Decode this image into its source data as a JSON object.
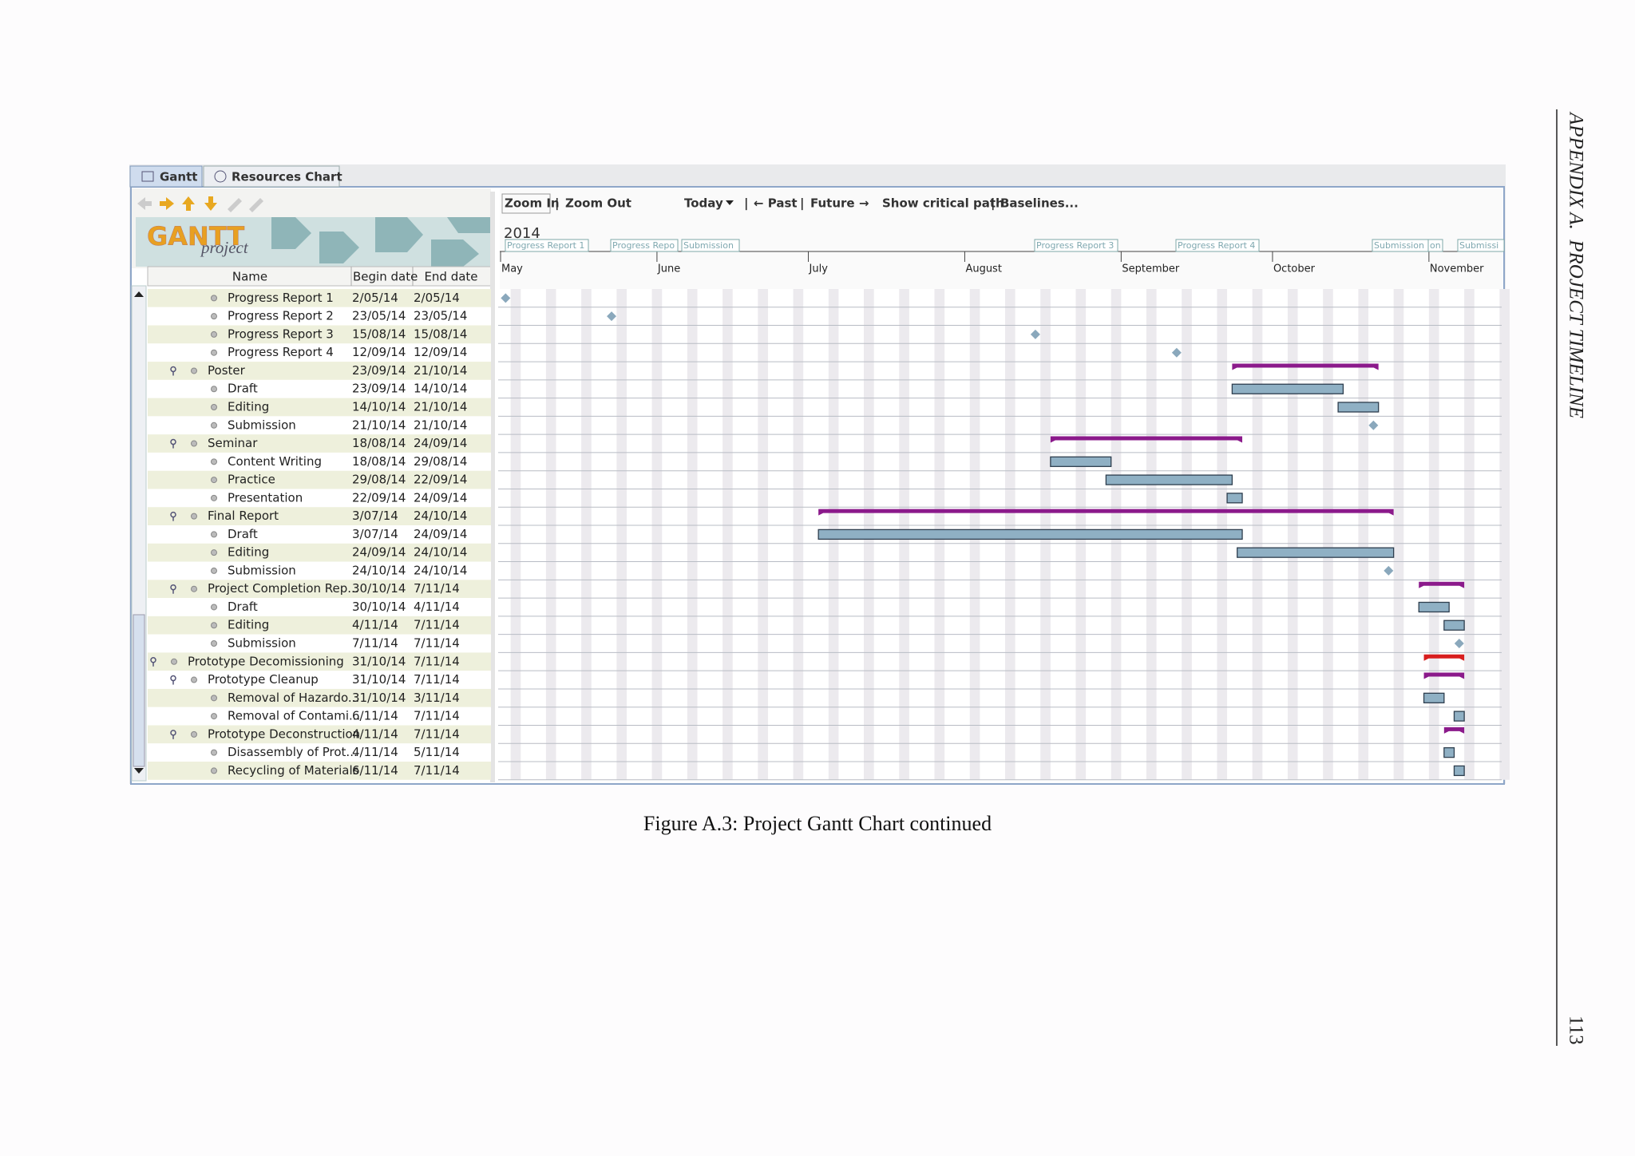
{
  "header": {
    "running_head": "APPENDIX A.  PROJECT TIMELINE",
    "page_number": "113"
  },
  "figure": {
    "tabs": [
      "Gantt",
      "Resources Chart"
    ],
    "logo": {
      "brand": "GANTT",
      "sub": "project"
    },
    "toolbar": {
      "zoom_in": "Zoom In",
      "zoom_out": "Zoom Out",
      "today": "Today",
      "past": "← Past",
      "future": "Future →",
      "critical_path": "Show critical path",
      "baselines": "Baselines...",
      "separator": "|"
    },
    "table": {
      "columns": [
        "Name",
        "Begin date",
        "End date"
      ],
      "rows": [
        {
          "name": "Progress Report 1",
          "begin": "2/05/14",
          "end": "2/05/14",
          "level": 2
        },
        {
          "name": "Progress Report 2",
          "begin": "23/05/14",
          "end": "23/05/14",
          "level": 2
        },
        {
          "name": "Progress Report 3",
          "begin": "15/08/14",
          "end": "15/08/14",
          "level": 2
        },
        {
          "name": "Progress Report 4",
          "begin": "12/09/14",
          "end": "12/09/14",
          "level": 2
        },
        {
          "name": "Poster",
          "begin": "23/09/14",
          "end": "21/10/14",
          "level": 1
        },
        {
          "name": "Draft",
          "begin": "23/09/14",
          "end": "14/10/14",
          "level": 2
        },
        {
          "name": "Editing",
          "begin": "14/10/14",
          "end": "21/10/14",
          "level": 2
        },
        {
          "name": "Submission",
          "begin": "21/10/14",
          "end": "21/10/14",
          "level": 2
        },
        {
          "name": "Seminar",
          "begin": "18/08/14",
          "end": "24/09/14",
          "level": 1
        },
        {
          "name": "Content Writing",
          "begin": "18/08/14",
          "end": "29/08/14",
          "level": 2
        },
        {
          "name": "Practice",
          "begin": "29/08/14",
          "end": "22/09/14",
          "level": 2
        },
        {
          "name": "Presentation",
          "begin": "22/09/14",
          "end": "24/09/14",
          "level": 2
        },
        {
          "name": "Final Report",
          "begin": "3/07/14",
          "end": "24/10/14",
          "level": 1
        },
        {
          "name": "Draft",
          "begin": "3/07/14",
          "end": "24/09/14",
          "level": 2
        },
        {
          "name": "Editing",
          "begin": "24/09/14",
          "end": "24/10/14",
          "level": 2
        },
        {
          "name": "Submission",
          "begin": "24/10/14",
          "end": "24/10/14",
          "level": 2
        },
        {
          "name": "Project Completion Rep...",
          "begin": "30/10/14",
          "end": "7/11/14",
          "level": 1
        },
        {
          "name": "Draft",
          "begin": "30/10/14",
          "end": "4/11/14",
          "level": 2
        },
        {
          "name": "Editing",
          "begin": "4/11/14",
          "end": "7/11/14",
          "level": 2
        },
        {
          "name": "Submission",
          "begin": "7/11/14",
          "end": "7/11/14",
          "level": 2
        },
        {
          "name": "Prototype Decomissioning",
          "begin": "31/10/14",
          "end": "7/11/14",
          "level": 0
        },
        {
          "name": "Prototype Cleanup",
          "begin": "31/10/14",
          "end": "7/11/14",
          "level": 1
        },
        {
          "name": "Removal of Hazardo...",
          "begin": "31/10/14",
          "end": "3/11/14",
          "level": 2
        },
        {
          "name": "Removal of Contami...",
          "begin": "6/11/14",
          "end": "7/11/14",
          "level": 2
        },
        {
          "name": "Prototype Deconstruction",
          "begin": "4/11/14",
          "end": "7/11/14",
          "level": 1
        },
        {
          "name": "Disassembly of Prot...",
          "begin": "4/11/14",
          "end": "5/11/14",
          "level": 2
        },
        {
          "name": "Recycling of Materials",
          "begin": "6/11/14",
          "end": "7/11/14",
          "level": 2
        }
      ]
    },
    "timeline": {
      "year": "2014",
      "months": [
        "May",
        "June",
        "July",
        "August",
        "September",
        "October",
        "November"
      ],
      "milestone_labels": [
        "Progress Report 1",
        "Progress Repo",
        "Submission",
        "Progress Report 3",
        "Progress Report 4",
        "Submission",
        "on",
        "Submissi"
      ]
    }
  },
  "caption": "Figure A.3: Project Gantt Chart continued"
}
